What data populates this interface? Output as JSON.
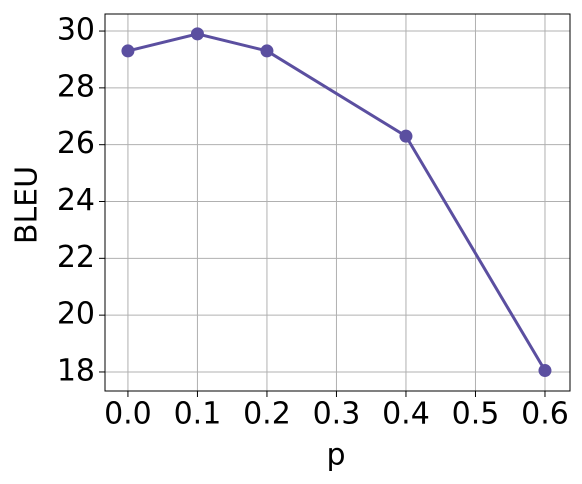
{
  "chart_data": {
    "type": "line",
    "x_label": "p",
    "y_label": "BLEU",
    "x": [
      0.0,
      0.1,
      0.2,
      0.4,
      0.6
    ],
    "series": [
      {
        "color": "#5b4fa0",
        "values": [
          29.3,
          29.9,
          29.3,
          26.3,
          18.05
        ]
      }
    ],
    "xlim": [
      -0.033,
      0.636
    ],
    "ylim": [
      17.33,
      30.6
    ],
    "xticks": [
      {
        "value": 0.0,
        "label": "0.0"
      },
      0.1,
      0.2,
      0.3,
      0.4,
      0.5,
      0.6
    ],
    "yticks": [
      18,
      20,
      22,
      24,
      26,
      28,
      30
    ],
    "grid": true
  }
}
